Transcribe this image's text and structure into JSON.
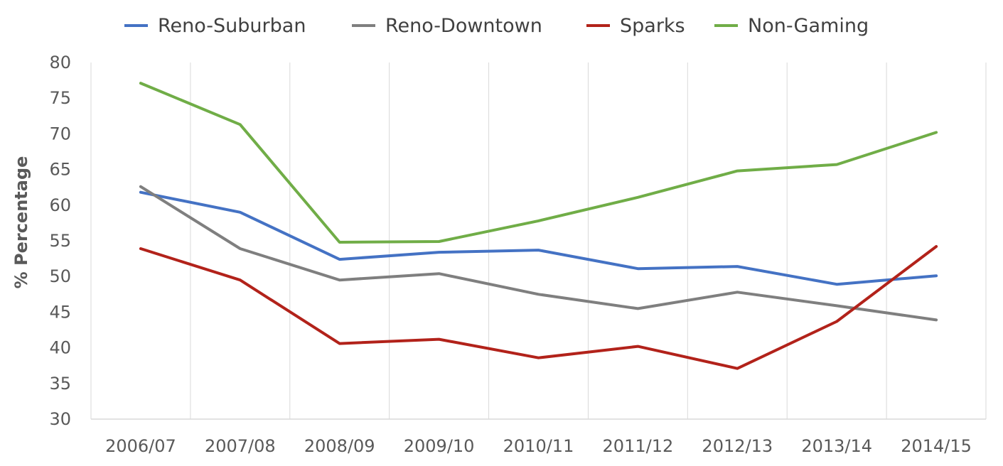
{
  "chart_data": {
    "type": "line",
    "title": "",
    "xlabel": "",
    "ylabel": "% Percentage",
    "ylim": [
      30,
      80
    ],
    "yticks": [
      30,
      35,
      40,
      45,
      50,
      55,
      60,
      65,
      70,
      75,
      80
    ],
    "grid": "vertical",
    "legend_position": "top",
    "categories": [
      "2006/07",
      "2007/08",
      "2008/09",
      "2009/10",
      "2010/11",
      "2011/12",
      "2012/13",
      "2013/14",
      "2014/15"
    ],
    "series": [
      {
        "name": "Reno-Suburban",
        "color": "#4472c4",
        "values": [
          61.8,
          59.0,
          52.4,
          53.4,
          53.7,
          51.1,
          51.4,
          48.9,
          50.1
        ]
      },
      {
        "name": "Reno-Downtown",
        "color": "#7f7f7f",
        "values": [
          62.6,
          53.9,
          49.5,
          50.4,
          47.5,
          45.5,
          47.8,
          45.9,
          43.9
        ]
      },
      {
        "name": "Sparks",
        "color": "#b2221a",
        "values": [
          53.9,
          49.5,
          40.6,
          41.2,
          38.6,
          40.2,
          37.1,
          43.7,
          54.2
        ]
      },
      {
        "name": "Non-Gaming",
        "color": "#70ad47",
        "values": [
          77.1,
          71.3,
          54.8,
          54.9,
          57.8,
          61.1,
          64.8,
          65.7,
          70.2
        ]
      }
    ]
  }
}
